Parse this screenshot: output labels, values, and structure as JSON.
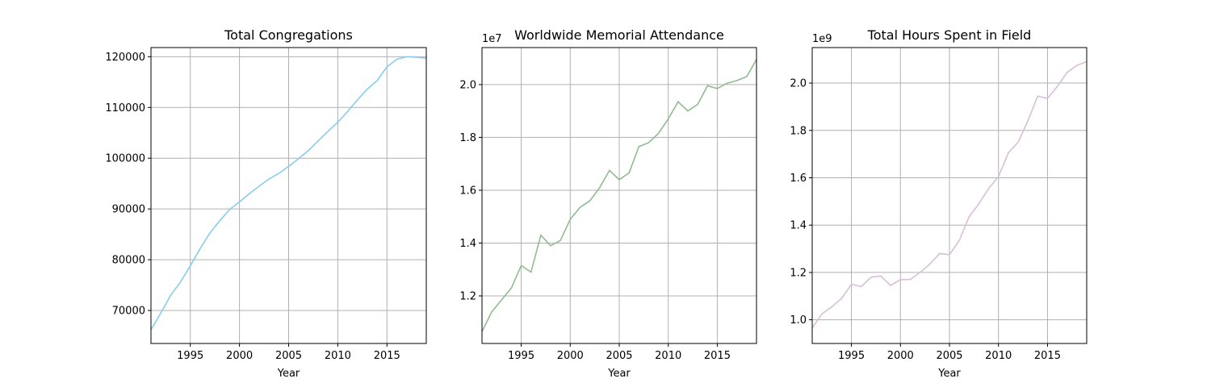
{
  "chart_data": [
    {
      "type": "line",
      "title": "Total Congregations",
      "xlabel": "Year",
      "ylabel": "",
      "y_exponent": "",
      "color": "#87ceeb",
      "xlim": [
        1991,
        2019
      ],
      "ylim": [
        63500,
        121800
      ],
      "xticks": [
        1995,
        2000,
        2005,
        2010,
        2015
      ],
      "yticks": [
        70000,
        80000,
        90000,
        100000,
        110000,
        120000
      ],
      "ytick_labels": [
        "70000",
        "80000",
        "90000",
        "100000",
        "110000",
        "120000"
      ],
      "grid": true,
      "x": [
        1991,
        1992,
        1993,
        1994,
        1995,
        1996,
        1997,
        1998,
        1999,
        2000,
        2001,
        2002,
        2003,
        2004,
        2005,
        2006,
        2007,
        2008,
        2009,
        2010,
        2011,
        2012,
        2013,
        2014,
        2015,
        2016,
        2017,
        2018,
        2019
      ],
      "values": [
        66200,
        69500,
        73000,
        75600,
        78800,
        82200,
        85300,
        87700,
        89900,
        91400,
        93000,
        94500,
        95900,
        97000,
        98400,
        99900,
        101500,
        103400,
        105300,
        107100,
        109200,
        111500,
        113600,
        115300,
        118000,
        119500,
        120000,
        119900,
        119700
      ]
    },
    {
      "type": "line",
      "title": "Worldwide Memorial Attendance",
      "xlabel": "Year",
      "ylabel": "",
      "y_exponent": "1e7",
      "color": "#8fbc8f",
      "xlim": [
        1991,
        2019
      ],
      "ylim": [
        1.02,
        2.14
      ],
      "xticks": [
        1995,
        2000,
        2005,
        2010,
        2015
      ],
      "yticks": [
        1.2,
        1.4,
        1.6,
        1.8,
        2.0
      ],
      "ytick_labels": [
        "1.2",
        "1.4",
        "1.6",
        "1.8",
        "2.0"
      ],
      "grid": true,
      "x": [
        1991,
        1992,
        1993,
        1994,
        1995,
        1996,
        1997,
        1998,
        1999,
        2000,
        2001,
        2002,
        2003,
        2004,
        2005,
        2006,
        2007,
        2008,
        2009,
        2010,
        2011,
        2012,
        2013,
        2014,
        2015,
        2016,
        2017,
        2018,
        2019
      ],
      "values": [
        1.065,
        1.14,
        1.185,
        1.23,
        1.315,
        1.29,
        1.43,
        1.39,
        1.41,
        1.49,
        1.535,
        1.56,
        1.61,
        1.675,
        1.64,
        1.665,
        1.765,
        1.78,
        1.815,
        1.87,
        1.935,
        1.9,
        1.925,
        1.995,
        1.985,
        2.005,
        2.015,
        2.03,
        2.095
      ]
    },
    {
      "type": "line",
      "title": "Total Hours Spent in Field",
      "xlabel": "Year",
      "ylabel": "",
      "y_exponent": "1e9",
      "color": "#d8bfd8",
      "xlim": [
        1991,
        2019
      ],
      "ylim": [
        0.9,
        2.15
      ],
      "xticks": [
        1995,
        2000,
        2005,
        2010,
        2015
      ],
      "yticks": [
        1.0,
        1.2,
        1.4,
        1.6,
        1.8,
        2.0
      ],
      "ytick_labels": [
        "1.0",
        "1.2",
        "1.4",
        "1.6",
        "1.8",
        "2.0"
      ],
      "grid": true,
      "x": [
        1991,
        1992,
        1993,
        1994,
        1995,
        1996,
        1997,
        1998,
        1999,
        2000,
        2001,
        2002,
        2003,
        2004,
        2005,
        2006,
        2007,
        2008,
        2009,
        2010,
        2011,
        2012,
        2013,
        2014,
        2015,
        2016,
        2017,
        2018,
        2019
      ],
      "values": [
        0.965,
        1.025,
        1.055,
        1.09,
        1.15,
        1.14,
        1.18,
        1.185,
        1.145,
        1.17,
        1.17,
        1.2,
        1.235,
        1.28,
        1.275,
        1.335,
        1.435,
        1.49,
        1.555,
        1.605,
        1.705,
        1.75,
        1.84,
        1.945,
        1.935,
        1.985,
        2.045,
        2.075,
        2.09
      ]
    }
  ]
}
